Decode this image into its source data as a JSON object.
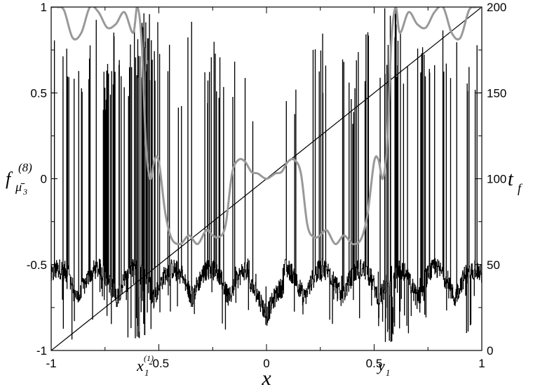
{
  "chart_data": {
    "type": "line",
    "xlabel": "x",
    "ylabel_left": {
      "base": "f",
      "sub": "μ̄",
      "subsub": "3",
      "sup": "(8)"
    },
    "ylabel_right": {
      "base": "t",
      "sub": "f"
    },
    "xlim": [
      -1,
      1
    ],
    "ylim_left": [
      -1,
      1
    ],
    "ylim_right": [
      0,
      200
    ],
    "x_ticks": [
      "-1",
      "-0.5",
      "0",
      "0.5",
      "1"
    ],
    "y_ticks_left": [
      "-1",
      "-0.5",
      "0",
      "0.5",
      "1"
    ],
    "y_ticks_right": [
      "0",
      "50",
      "100",
      "150",
      "200"
    ],
    "annotations": [
      {
        "base": "x",
        "sub": "1",
        "sup": "(1)",
        "x": -0.57
      },
      {
        "base": "y",
        "sub": "1",
        "x": 0.55
      }
    ],
    "series": [
      {
        "role": "fractal-signal",
        "color": "#000000",
        "axis": "left",
        "x": [
          -1.0,
          -0.95,
          -0.9,
          -0.85,
          -0.8,
          -0.75,
          -0.7,
          -0.65,
          -0.6,
          -0.55,
          -0.5,
          -0.45,
          -0.4,
          -0.35,
          -0.3,
          -0.25,
          -0.2,
          -0.15,
          -0.1,
          -0.05,
          0.0,
          0.05,
          0.1,
          0.15,
          0.2,
          0.25,
          0.3,
          0.35,
          0.4,
          0.45,
          0.5,
          0.55,
          0.6,
          0.65,
          0.7,
          0.75,
          0.8,
          0.85,
          0.9,
          0.95,
          1.0
        ],
        "envelope_low": [
          -0.9,
          -0.9,
          -0.95,
          -0.85,
          -0.9,
          -0.8,
          -0.9,
          -0.92,
          -0.95,
          -0.95,
          -0.8,
          -0.9,
          -0.85,
          -0.8,
          -0.92,
          -0.8,
          -0.9,
          -0.8,
          -0.95,
          -0.75,
          -0.9,
          -0.75,
          -0.95,
          -0.8,
          -0.9,
          -0.8,
          -0.92,
          -0.8,
          -0.85,
          -0.9,
          -0.8,
          -0.95,
          -0.95,
          -0.92,
          -0.9,
          -0.8,
          -0.9,
          -0.85,
          -0.95,
          -0.9,
          -0.9
        ],
        "envelope_high": [
          1.0,
          0.7,
          1.0,
          0.65,
          1.0,
          0.6,
          1.0,
          0.7,
          1.0,
          1.0,
          0.95,
          1.0,
          0.55,
          1.0,
          0.5,
          1.0,
          0.7,
          0.7,
          0.6,
          0.5,
          0.0,
          0.5,
          0.6,
          0.7,
          0.7,
          1.0,
          0.5,
          1.0,
          0.55,
          1.0,
          0.95,
          1.0,
          1.0,
          0.7,
          1.0,
          0.6,
          1.0,
          0.65,
          1.0,
          0.7,
          1.0
        ]
      },
      {
        "role": "smooth-curve",
        "color": "#999999",
        "axis": "left",
        "x": [
          -1.0,
          -0.97,
          -0.94,
          -0.9,
          -0.86,
          -0.82,
          -0.78,
          -0.74,
          -0.7,
          -0.66,
          -0.62,
          -0.6,
          -0.58,
          -0.56,
          -0.54,
          -0.52,
          -0.5,
          -0.47,
          -0.44,
          -0.4,
          -0.36,
          -0.32,
          -0.28,
          -0.25,
          -0.22,
          -0.19,
          -0.16,
          -0.13,
          -0.1,
          -0.07,
          -0.04,
          0.0,
          0.04,
          0.07,
          0.1,
          0.13,
          0.16,
          0.19,
          0.22,
          0.25,
          0.28,
          0.32,
          0.36,
          0.4,
          0.44,
          0.47,
          0.5,
          0.52,
          0.54,
          0.56,
          0.58,
          0.6,
          0.62,
          0.66,
          0.7,
          0.74,
          0.78,
          0.82,
          0.86,
          0.9,
          0.94,
          0.97,
          1.0
        ],
        "y": [
          1.0,
          1.0,
          0.98,
          0.82,
          0.85,
          1.0,
          0.97,
          0.88,
          0.9,
          0.97,
          0.85,
          1.0,
          0.8,
          0.2,
          0.0,
          0.11,
          0.1,
          -0.2,
          -0.35,
          -0.38,
          -0.33,
          -0.38,
          -0.3,
          -0.33,
          -0.34,
          -0.27,
          0.03,
          0.11,
          0.1,
          0.04,
          0.03,
          0.0,
          0.03,
          0.04,
          0.1,
          0.11,
          0.03,
          -0.27,
          -0.34,
          -0.33,
          -0.3,
          -0.38,
          -0.33,
          -0.38,
          -0.35,
          -0.2,
          0.1,
          0.11,
          0.0,
          0.2,
          0.8,
          1.0,
          0.85,
          0.97,
          0.9,
          0.88,
          0.97,
          1.0,
          0.85,
          0.82,
          0.98,
          1.0,
          1.0
        ]
      },
      {
        "role": "linear",
        "color": "#000000",
        "axis": "right",
        "x": [
          -1,
          1
        ],
        "y": [
          0,
          200
        ]
      }
    ]
  }
}
